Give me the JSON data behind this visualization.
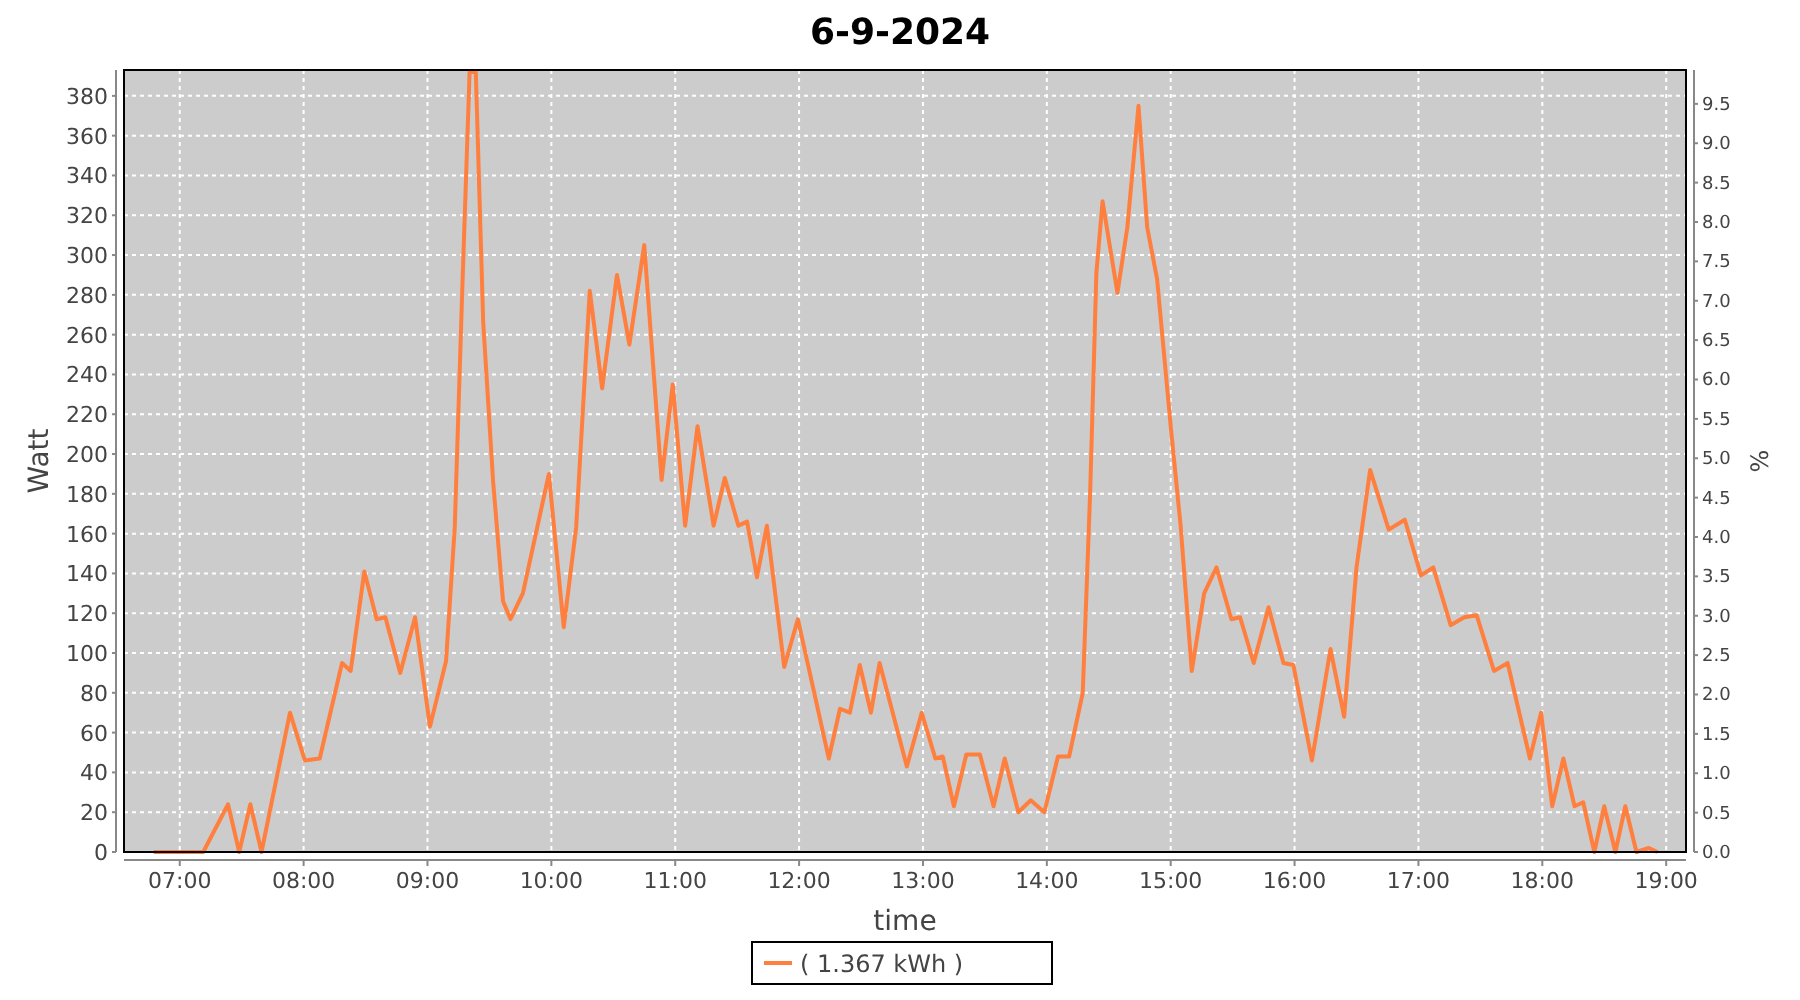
{
  "chart_data": {
    "type": "line",
    "title": "6-9-2024",
    "xlabel": "time",
    "ylabel": "Watt",
    "y2label": "%",
    "xlim": [
      6.55,
      19.16
    ],
    "xticks": [
      {
        "value": 7,
        "label": "07:00"
      },
      {
        "value": 8,
        "label": "08:00"
      },
      {
        "value": 9,
        "label": "09:00"
      },
      {
        "value": 10,
        "label": "10:00"
      },
      {
        "value": 11,
        "label": "11:00"
      },
      {
        "value": 12,
        "label": "12:00"
      },
      {
        "value": 13,
        "label": "13:00"
      },
      {
        "value": 14,
        "label": "14:00"
      },
      {
        "value": 15,
        "label": "15:00"
      },
      {
        "value": 16,
        "label": "16:00"
      },
      {
        "value": 17,
        "label": "17:00"
      },
      {
        "value": 18,
        "label": "18:00"
      },
      {
        "value": 19,
        "label": "19:00"
      }
    ],
    "ylim": [
      0,
      393
    ],
    "yticks": [
      0,
      20,
      40,
      60,
      80,
      100,
      120,
      140,
      160,
      180,
      200,
      220,
      240,
      260,
      280,
      300,
      320,
      340,
      360,
      380
    ],
    "y2lim": [
      0,
      9.93
    ],
    "y2ticks": [
      {
        "value": 0,
        "label": "0.0"
      },
      0.5,
      {
        "value": 1,
        "label": "1.0"
      },
      1.5,
      {
        "value": 2,
        "label": "2.0"
      },
      2.5,
      {
        "value": 3,
        "label": "3.0"
      },
      3.5,
      {
        "value": 4,
        "label": "4.0"
      },
      4.5,
      {
        "value": 5,
        "label": "5.0"
      },
      5.5,
      {
        "value": 6,
        "label": "6.0"
      },
      6.5,
      {
        "value": 7,
        "label": "7.0"
      },
      7.5,
      {
        "value": 8,
        "label": "8.0"
      },
      8.5,
      {
        "value": 9,
        "label": "9.0"
      },
      9.5
    ],
    "grid": true,
    "legend": "bottom",
    "line_style": "solid",
    "series": [
      {
        "name": "( 1.367 kWh )",
        "color": "#ff7f3f",
        "x": [
          6.79,
          7.19,
          7.39,
          7.48,
          7.57,
          7.66,
          7.89,
          8.01,
          8.13,
          8.31,
          8.38,
          8.49,
          8.59,
          8.66,
          8.78,
          8.9,
          9.02,
          9.15,
          9.22,
          9.28,
          9.34,
          9.39,
          9.45,
          9.53,
          9.61,
          9.67,
          9.77,
          9.91,
          9.98,
          10.1,
          10.2,
          10.31,
          10.41,
          10.53,
          10.63,
          10.75,
          10.89,
          10.98,
          11.08,
          11.18,
          11.31,
          11.4,
          11.51,
          11.58,
          11.66,
          11.74,
          11.88,
          11.99,
          12.24,
          12.33,
          12.41,
          12.49,
          12.58,
          12.65,
          12.87,
          12.99,
          13.1,
          13.16,
          13.25,
          13.35,
          13.46,
          13.57,
          13.66,
          13.77,
          13.87,
          13.98,
          14.09,
          14.18,
          14.29,
          14.35,
          14.4,
          14.45,
          14.57,
          14.65,
          14.74,
          14.81,
          14.89,
          15,
          15.08,
          15.17,
          15.27,
          15.37,
          15.49,
          15.56,
          15.67,
          15.79,
          15.91,
          15.99,
          16.14,
          16.29,
          16.4,
          16.5,
          16.61,
          16.76,
          16.89,
          17.02,
          17.12,
          17.26,
          17.37,
          17.47,
          17.61,
          17.72,
          17.9,
          17.99,
          18.08,
          18.17,
          18.26,
          18.33,
          18.42,
          18.5,
          18.59,
          18.67,
          18.76,
          18.86,
          18.93
        ],
        "values": [
          0,
          0,
          24,
          0,
          24,
          0,
          70,
          46,
          47,
          95,
          91,
          141,
          117,
          118,
          90,
          118,
          63,
          96,
          163,
          281,
          392,
          392,
          266,
          186,
          126,
          117,
          130,
          170,
          190,
          113,
          163,
          282,
          233,
          290,
          255,
          305,
          187,
          235,
          164,
          214,
          164,
          188,
          164,
          166,
          138,
          164,
          93,
          117,
          47,
          72,
          70,
          94,
          70,
          95,
          43,
          70,
          47,
          48,
          23,
          49,
          49,
          23,
          47,
          20,
          26,
          20,
          48,
          48,
          80,
          181,
          291,
          327,
          281,
          314,
          375,
          314,
          288,
          214,
          164,
          91,
          130,
          143,
          117,
          118,
          95,
          123,
          95,
          94,
          46,
          102,
          68,
          143,
          192,
          162,
          167,
          139,
          143,
          114,
          118,
          119,
          91,
          95,
          47,
          70,
          23,
          47,
          23,
          25,
          0,
          23,
          0,
          23,
          0,
          2,
          0
        ]
      }
    ]
  }
}
